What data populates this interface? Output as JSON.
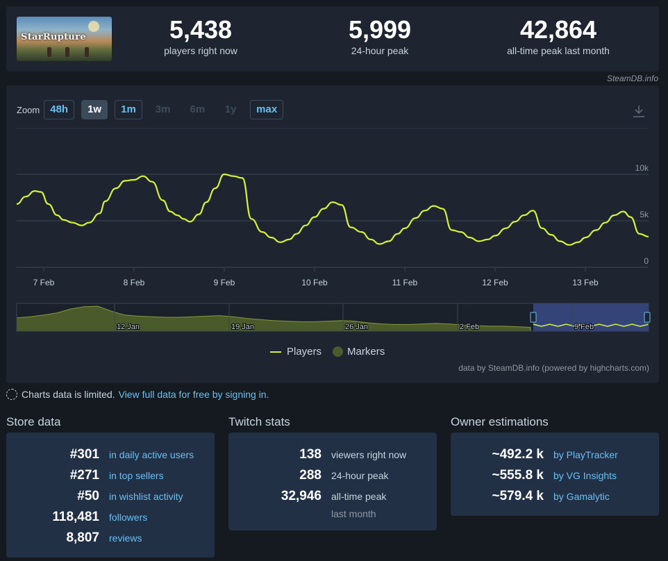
{
  "header": {
    "game_logo": "StarRupture",
    "stats": [
      {
        "value": "5,438",
        "label": "players right now"
      },
      {
        "value": "5,999",
        "label": "24-hour peak"
      },
      {
        "value": "42,864",
        "label": "all-time peak last month"
      }
    ],
    "steamdb_credit": "SteamDB.info"
  },
  "chart": {
    "zoom_label": "Zoom",
    "zoom_buttons": [
      "48h",
      "1w",
      "1m",
      "3m",
      "6m",
      "1y",
      "max"
    ],
    "active_zoom": "1w",
    "legend": [
      "Players",
      "Markers"
    ],
    "credit": "data by SteamDB.info (powered by highcharts.com)",
    "colors": {
      "players": "#d6f233",
      "markers": "#4d5a2b",
      "navigator_fill": "#4a5a2a",
      "navigator_selection": "#3b4a86"
    }
  },
  "chart_data": {
    "type": "line",
    "xlabel": "",
    "ylabel": "",
    "ylim": [
      0,
      10000
    ],
    "yticks": [
      "0",
      "5k",
      "10k"
    ],
    "xticks": [
      "7 Feb",
      "8 Feb",
      "9 Feb",
      "10 Feb",
      "11 Feb",
      "12 Feb",
      "13 Feb"
    ],
    "navigator_ticks": [
      "12 Jan",
      "19 Jan",
      "26 Jan",
      "2 Feb",
      "9 Feb"
    ],
    "series": [
      {
        "name": "Players",
        "x": [
          6.7,
          6.8,
          6.9,
          6.97,
          7.05,
          7.15,
          7.22,
          7.32,
          7.42,
          7.5,
          7.62,
          7.68,
          7.8,
          7.9,
          8.0,
          8.1,
          8.2,
          8.32,
          8.4,
          8.48,
          8.55,
          8.62,
          8.72,
          8.8,
          8.9,
          9.0,
          9.1,
          9.2,
          9.3,
          9.42,
          9.52,
          9.62,
          9.72,
          9.8,
          9.9,
          10.0,
          10.1,
          10.2,
          10.3,
          10.4,
          10.52,
          10.62,
          10.72,
          10.82,
          10.92,
          11.0,
          11.12,
          11.22,
          11.32,
          11.42,
          11.52,
          11.62,
          11.72,
          11.82,
          11.92,
          12.0,
          12.12,
          12.22,
          12.32,
          12.42,
          12.52,
          12.62,
          12.72,
          12.82,
          12.92,
          13.0,
          13.12,
          13.22,
          13.32,
          13.42,
          13.5,
          13.6,
          13.7
        ],
        "y": [
          6800,
          7600,
          8200,
          8100,
          6800,
          5600,
          5100,
          4800,
          4500,
          4800,
          5800,
          7100,
          8500,
          9300,
          9400,
          9800,
          9200,
          7200,
          6000,
          5600,
          5200,
          4900,
          5700,
          7000,
          8500,
          10000,
          9800,
          9600,
          5200,
          3800,
          3200,
          2700,
          3000,
          3600,
          4500,
          5400,
          6300,
          7000,
          6700,
          4300,
          3800,
          3000,
          2500,
          2800,
          3600,
          4200,
          5300,
          6100,
          6600,
          6300,
          4000,
          3800,
          3200,
          2800,
          3000,
          3400,
          4200,
          4900,
          5600,
          6100,
          4200,
          3500,
          2800,
          2400,
          2700,
          3200,
          4000,
          4800,
          5600,
          6000,
          5400,
          3600,
          3300
        ]
      }
    ]
  },
  "notice": {
    "text": "Charts data is limited.",
    "link": "View full data for free by signing in."
  },
  "store_data": {
    "title": "Store data",
    "rows": [
      {
        "value": "#301",
        "label": "in daily active users"
      },
      {
        "value": "#271",
        "label": "in top sellers"
      },
      {
        "value": "#50",
        "label": "in wishlist activity"
      },
      {
        "value": "118,481",
        "label": "followers"
      },
      {
        "value": "8,807",
        "label": "reviews"
      }
    ]
  },
  "twitch_stats": {
    "title": "Twitch stats",
    "rows": [
      {
        "value": "138",
        "label": "viewers right now"
      },
      {
        "value": "288",
        "label": "24-hour peak"
      },
      {
        "value": "32,946",
        "label": "all-time peak"
      }
    ],
    "sub_label": "last month"
  },
  "owner_estimations": {
    "title": "Owner estimations",
    "rows": [
      {
        "value": "~492.2 k",
        "label": "by PlayTracker"
      },
      {
        "value": "~555.8 k",
        "label": "by VG Insights"
      },
      {
        "value": "~579.4 k",
        "label": "by Gamalytic"
      }
    ]
  }
}
